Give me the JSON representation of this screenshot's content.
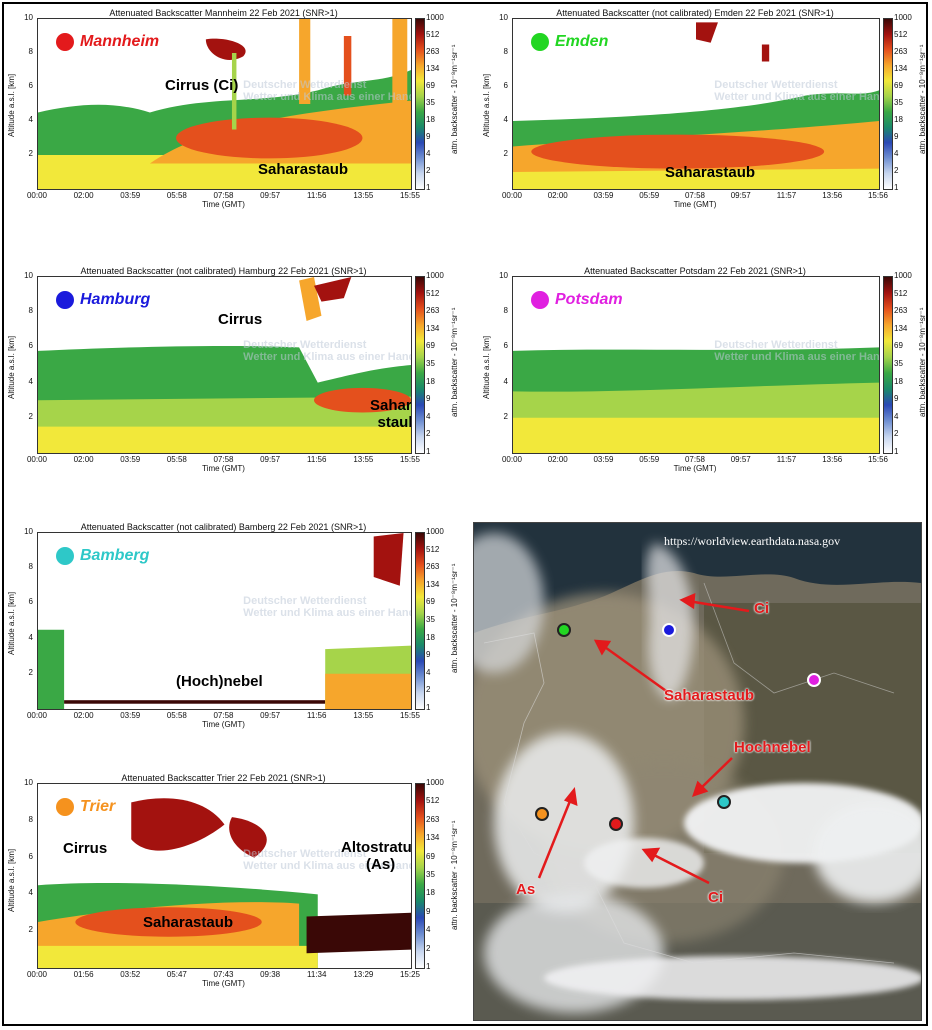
{
  "chart_data": [
    {
      "type": "heatmap",
      "station": "Mannheim",
      "station_color": "#e31a1c",
      "title": "Attenuated Backscatter Mannheim 22 Feb 2021 (SNR>1)",
      "xlabel": "Time (GMT)",
      "ylabel": "Altitude a.s.l. [km]",
      "x_ticks": [
        "00:00",
        "02:00",
        "03:59",
        "05:58",
        "07:58",
        "09:57",
        "11:56",
        "13:55",
        "15:55"
      ],
      "y_ticks": [
        "2",
        "4",
        "6",
        "8",
        "10"
      ],
      "ylim": [
        0,
        10
      ],
      "colorbar_label": "attn. backscatter - 10⁻⁸m⁻¹sr⁻¹",
      "colorbar_ticks": [
        "1000",
        "512",
        "263",
        "134",
        "69",
        "35",
        "18",
        "9",
        "4",
        "2",
        "1"
      ],
      "annotations": [
        "Cirrus (Ci)",
        "Saharastaub"
      ]
    },
    {
      "type": "heatmap",
      "station": "Emden",
      "station_color": "#22d622",
      "title": "Attenuated Backscatter (not calibrated) Emden 22 Feb 2021 (SNR>1)",
      "xlabel": "Time (GMT)",
      "ylabel": "Altitude a.s.l. [km]",
      "x_ticks": [
        "00:00",
        "02:00",
        "03:59",
        "05:59",
        "07:58",
        "09:57",
        "11:57",
        "13:56",
        "15:56"
      ],
      "y_ticks": [
        "2",
        "4",
        "6",
        "8",
        "10"
      ],
      "ylim": [
        0,
        10
      ],
      "colorbar_label": "attn. backscatter - 10⁻⁸m⁻¹sr⁻¹",
      "colorbar_ticks": [
        "1000",
        "512",
        "263",
        "134",
        "69",
        "35",
        "18",
        "9",
        "4",
        "2",
        "1"
      ],
      "annotations": [
        "Saharastaub"
      ]
    },
    {
      "type": "heatmap",
      "station": "Hamburg",
      "station_color": "#1a1adc",
      "title": "Attenuated Backscatter (not calibrated) Hamburg 22 Feb 2021 (SNR>1)",
      "xlabel": "Time (GMT)",
      "ylabel": "Altitude a.s.l. [km]",
      "x_ticks": [
        "00:00",
        "02:00",
        "03:59",
        "05:58",
        "07:58",
        "09:57",
        "11:56",
        "13:55",
        "15:55"
      ],
      "y_ticks": [
        "2",
        "4",
        "6",
        "8",
        "10"
      ],
      "ylim": [
        0,
        10
      ],
      "colorbar_label": "attn. backscatter - 10⁻⁸m⁻¹sr⁻¹",
      "colorbar_ticks": [
        "1000",
        "512",
        "263",
        "134",
        "69",
        "35",
        "18",
        "9",
        "4",
        "2",
        "1"
      ],
      "annotations": [
        "Cirrus",
        "Sahara-",
        "staub"
      ]
    },
    {
      "type": "heatmap",
      "station": "Potsdam",
      "station_color": "#e020e0",
      "title": "Attenuated Backscatter Potsdam 22 Feb 2021 (SNR>1)",
      "xlabel": "Time (GMT)",
      "ylabel": "Altitude a.s.l. [km]",
      "x_ticks": [
        "00:00",
        "02:00",
        "03:59",
        "05:59",
        "07:58",
        "09:57",
        "11:57",
        "13:56",
        "15:56"
      ],
      "y_ticks": [
        "2",
        "4",
        "6",
        "8",
        "10"
      ],
      "ylim": [
        0,
        10
      ],
      "colorbar_label": "attn. backscatter - 10⁻⁸m⁻¹sr⁻¹",
      "colorbar_ticks": [
        "1000",
        "512",
        "263",
        "134",
        "69",
        "35",
        "18",
        "9",
        "4",
        "2",
        "1"
      ],
      "annotations": []
    },
    {
      "type": "heatmap",
      "station": "Bamberg",
      "station_color": "#2ec8c8",
      "title": "Attenuated Backscatter (not calibrated) Bamberg 22 Feb 2021 (SNR>1)",
      "xlabel": "Time (GMT)",
      "ylabel": "Altitude a.s.l. [km]",
      "x_ticks": [
        "00:00",
        "02:00",
        "03:59",
        "05:58",
        "07:58",
        "09:57",
        "11:56",
        "13:55",
        "15:55"
      ],
      "y_ticks": [
        "2",
        "4",
        "6",
        "8",
        "10"
      ],
      "ylim": [
        0,
        10
      ],
      "colorbar_label": "attn. backscatter - 10⁻⁸m⁻¹sr⁻¹",
      "colorbar_ticks": [
        "1000",
        "512",
        "263",
        "134",
        "69",
        "35",
        "18",
        "9",
        "4",
        "2",
        "1"
      ],
      "annotations": [
        "(Hoch)nebel"
      ]
    },
    {
      "type": "heatmap",
      "station": "Trier",
      "station_color": "#f5921e",
      "title": "Attenuated Backscatter Trier 22 Feb 2021 (SNR>1)",
      "xlabel": "Time (GMT)",
      "ylabel": "Altitude a.s.l. [km]",
      "x_ticks": [
        "00:00",
        "01:56",
        "03:52",
        "05:47",
        "07:43",
        "09:38",
        "11:34",
        "13:29",
        "15:25"
      ],
      "y_ticks": [
        "2",
        "4",
        "6",
        "8",
        "10"
      ],
      "ylim": [
        0,
        10
      ],
      "colorbar_label": "attn. backscatter - 10⁻⁸m⁻¹sr⁻¹",
      "colorbar_ticks": [
        "1000",
        "512",
        "263",
        "134",
        "69",
        "35",
        "18",
        "9",
        "4",
        "2",
        "1"
      ],
      "annotations": [
        "Cirrus",
        "Saharastaub",
        "Altostratus",
        "(As)"
      ]
    }
  ],
  "watermark": {
    "line1": "Deutscher Wetterdienst",
    "line2": "Wetter und Klima aus einer Hand"
  },
  "map": {
    "url": "https://worldview.earthdata.nasa.gov",
    "labels": [
      "Ci",
      "Saharastaub",
      "Hochnebel",
      "As",
      "Ci"
    ]
  }
}
